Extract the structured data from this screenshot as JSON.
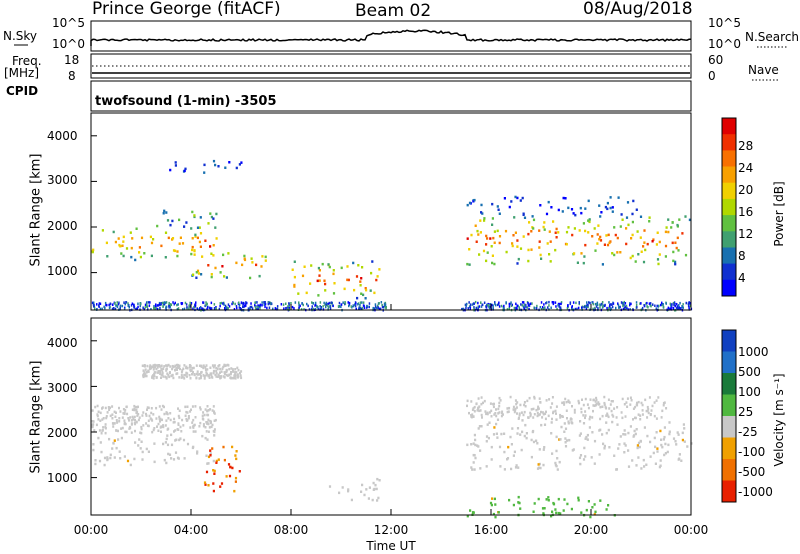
{
  "header": {
    "station": "Prince George (fitACF)",
    "beam": "Beam 02",
    "date": "08/Aug/2018"
  },
  "control_panels": {
    "nsky": {
      "label": "N.Sky",
      "left_ticks": [
        "10^5",
        "10^0"
      ],
      "right_ticks": [
        "10^5",
        "10^0"
      ],
      "right_label": "N.Search"
    },
    "freq": {
      "label_line1": "Freq.",
      "label_line2": "[MHz]",
      "left_ticks": [
        "18",
        "8"
      ],
      "right_ticks": [
        "60",
        "0"
      ],
      "right_label": "Nave"
    },
    "cpid": {
      "label": "CPID",
      "value": "twofsound (1-min) -3505"
    }
  },
  "axes": {
    "x_ticks": [
      "00:00",
      "04:00",
      "08:00",
      "12:00",
      "16:00",
      "20:00",
      "00:00"
    ],
    "x_label": "Time UT",
    "y_label": "Slant Range [km]",
    "y_ticks": [
      "4000",
      "3000",
      "2000",
      "1000"
    ]
  },
  "colorbars": {
    "power": {
      "label": "Power [dB]",
      "ticks": [
        "28",
        "24",
        "20",
        "16",
        "12",
        "8",
        "4"
      ],
      "colors": [
        "#e00000",
        "#f03000",
        "#f87000",
        "#f8a000",
        "#f0d000",
        "#b0d800",
        "#60c040",
        "#40a070",
        "#1870b0",
        "#1030d0",
        "#0000ff"
      ]
    },
    "velocity": {
      "label": "Velocity [m s⁻¹]",
      "ticks": [
        "1000",
        "500",
        "100",
        "25",
        "-25",
        "-100",
        "-500",
        "-1000"
      ],
      "colors": [
        "#1040c0",
        "#2070c8",
        "#1a7a3a",
        "#50b840",
        "#c8c8c8",
        "#f0a000",
        "#f07000",
        "#e82000"
      ]
    }
  },
  "chart_data": {
    "type": "heatmap",
    "x_range_hours": [
      0,
      24
    ],
    "y_range_km": [
      180,
      4500
    ],
    "power_echo_regions": [
      {
        "t0": 0.0,
        "t1": 5.0,
        "r0": 1300,
        "r1": 2000,
        "level": "high"
      },
      {
        "t0": 2.0,
        "t1": 5.0,
        "r0": 2000,
        "r1": 2400,
        "level": "mid"
      },
      {
        "t0": 3.0,
        "t1": 6.0,
        "r0": 3200,
        "r1": 3500,
        "level": "low"
      },
      {
        "t0": 4.0,
        "t1": 7.0,
        "r0": 900,
        "r1": 1500,
        "level": "high"
      },
      {
        "t0": 8.0,
        "t1": 11.5,
        "r0": 450,
        "r1": 1300,
        "level": "high"
      },
      {
        "t0": 15.0,
        "t1": 24.0,
        "r0": 1200,
        "r1": 2300,
        "level": "high"
      },
      {
        "t0": 15.0,
        "t1": 22.0,
        "r0": 2300,
        "r1": 2700,
        "level": "low"
      }
    ],
    "velocity_echo_regions": [
      {
        "t0": 0.0,
        "t1": 5.0,
        "r0": 1300,
        "r1": 2000,
        "velocity": "-25 to 25"
      },
      {
        "t0": 4.5,
        "t1": 6.0,
        "r0": 700,
        "r1": 1700,
        "velocity": "-500 to -100"
      },
      {
        "t0": 9.5,
        "t1": 11.5,
        "r0": 500,
        "r1": 1000,
        "velocity": "-25 to 25"
      },
      {
        "t0": 15.0,
        "t1": 24.0,
        "r0": 1200,
        "r1": 2300,
        "velocity": "-25 to 25"
      },
      {
        "t0": 15.0,
        "t1": 21.0,
        "r0": 150,
        "r1": 600,
        "velocity": "25 to 100"
      }
    ]
  }
}
